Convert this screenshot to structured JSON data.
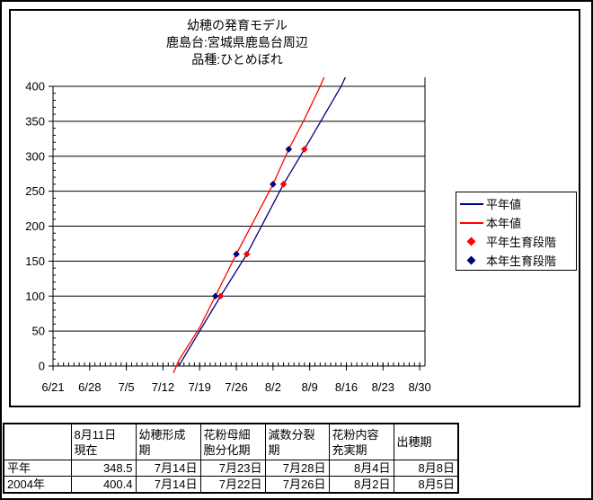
{
  "chart": {
    "title_lines": [
      "幼穂の発育モデル",
      "鹿島台:宮城県鹿島台周辺",
      "品種:ひとめぼれ"
    ],
    "legend": [
      {
        "label": "平年値",
        "type": "line",
        "color": "#000080"
      },
      {
        "label": "本年値",
        "type": "line",
        "color": "#ff0000"
      },
      {
        "label": "平年生育段階",
        "type": "diamond",
        "color": "#ff0000"
      },
      {
        "label": "本年生育段階",
        "type": "diamond",
        "color": "#000080"
      }
    ]
  },
  "chart_data": {
    "type": "line",
    "title": "幼穂の発育モデル 鹿島台:宮城県鹿島台周辺 品種:ひとめぼれ",
    "x_ticks": [
      "6/21",
      "6/28",
      "7/5",
      "7/12",
      "7/19",
      "7/26",
      "8/2",
      "8/9",
      "8/16",
      "8/23",
      "8/30"
    ],
    "ylim": [
      0,
      400
    ],
    "y_tick_step": 50,
    "y_minor_step": 10,
    "x_minor_step_days": 1,
    "grid": "horizontal",
    "legend_position": "right",
    "series": [
      {
        "name": "平年値",
        "kind": "line",
        "color": "#000080",
        "points": [
          [
            "7/15",
            0
          ],
          [
            "7/19",
            50
          ],
          [
            "7/23",
            100
          ],
          [
            "7/28",
            160
          ],
          [
            "8/4",
            260
          ],
          [
            "8/8",
            310
          ],
          [
            "8/11",
            348.5
          ],
          [
            "8/15",
            400
          ],
          [
            "8/16",
            416
          ]
        ]
      },
      {
        "name": "本年値",
        "kind": "line",
        "color": "#ff0000",
        "points": [
          [
            "7/14",
            -10
          ],
          [
            "7/15",
            8
          ],
          [
            "7/19",
            55
          ],
          [
            "7/22",
            100
          ],
          [
            "7/26",
            160
          ],
          [
            "8/2",
            260
          ],
          [
            "8/5",
            310
          ],
          [
            "8/8",
            353
          ],
          [
            "8/11",
            400
          ],
          [
            "8/12",
            417
          ]
        ]
      },
      {
        "name": "平年生育段階",
        "kind": "scatter",
        "marker": "diamond",
        "color": "#ff0000",
        "points": [
          [
            "7/23",
            100
          ],
          [
            "7/28",
            160
          ],
          [
            "8/4",
            260
          ],
          [
            "8/8",
            310
          ]
        ]
      },
      {
        "name": "本年生育段階",
        "kind": "scatter",
        "marker": "diamond",
        "color": "#000080",
        "points": [
          [
            "7/22",
            100
          ],
          [
            "7/26",
            160
          ],
          [
            "8/2",
            260
          ],
          [
            "8/5",
            310
          ]
        ]
      }
    ]
  },
  "table": {
    "headers": [
      "",
      "8月11日\n現在",
      "幼穂形成\n期",
      "花粉母細\n胞分化期",
      "減数分裂\n期",
      "花粉内容\n充実期",
      "出穂期"
    ],
    "rows": [
      {
        "label": "平年",
        "values": [
          "348.5",
          "7月14日",
          "7月23日",
          "7月28日",
          "8月4日",
          "8月8日"
        ]
      },
      {
        "label": "2004年",
        "values": [
          "400.4",
          "7月14日",
          "7月22日",
          "7月26日",
          "8月2日",
          "8月5日"
        ]
      }
    ]
  }
}
